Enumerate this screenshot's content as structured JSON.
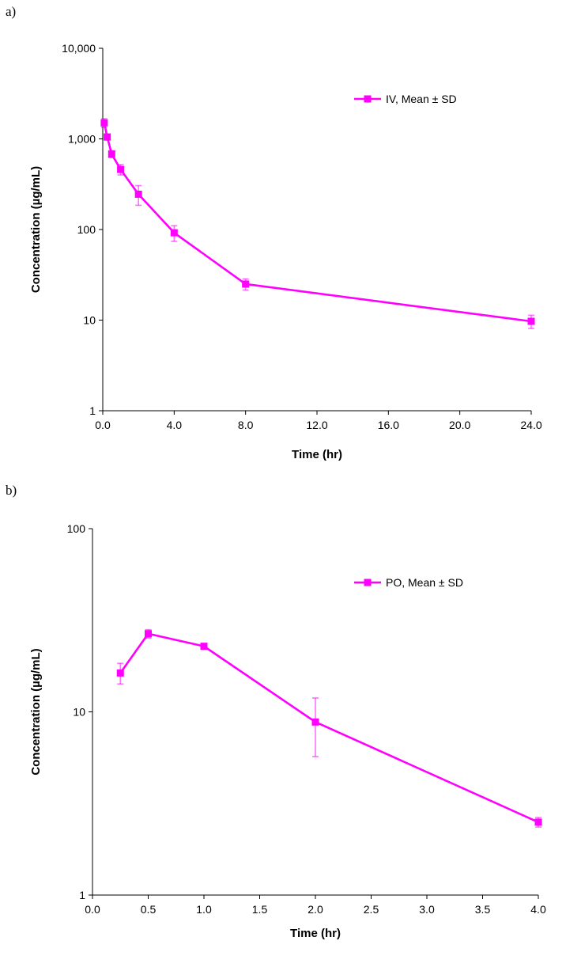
{
  "chart_data": [
    {
      "panel_label": "a)",
      "type": "line",
      "yscale": "log",
      "xlabel": "Time (hr)",
      "ylabel": "Concentration (µg/mL)",
      "xlim": [
        0,
        24
      ],
      "ylim": [
        1,
        10000
      ],
      "x_ticks": [
        0,
        4,
        8,
        12,
        16,
        20,
        24
      ],
      "x_tick_labels": [
        "0.0",
        "4.0",
        "8.0",
        "12.0",
        "16.0",
        "20.0",
        "24.0"
      ],
      "y_ticks": [
        1,
        10,
        100,
        1000,
        10000
      ],
      "y_tick_labels": [
        "1",
        "10",
        "100",
        "1,000",
        "10,000"
      ],
      "legend_position": "top-right",
      "series": [
        {
          "name": "IV, Mean ± SD",
          "color": "#ff00ff",
          "x": [
            0.083,
            0.25,
            0.5,
            1,
            2,
            4,
            8,
            24
          ],
          "y": [
            1500,
            1050,
            680,
            460,
            245,
            92,
            25,
            9.7
          ],
          "sd": [
            170,
            80,
            60,
            60,
            60,
            18,
            3.5,
            1.6
          ]
        }
      ]
    },
    {
      "panel_label": "b)",
      "type": "line",
      "yscale": "log",
      "xlabel": "Time (hr)",
      "ylabel": "Concentration (µg/mL)",
      "xlim": [
        0,
        4
      ],
      "ylim": [
        1,
        100
      ],
      "x_ticks": [
        0,
        0.5,
        1,
        1.5,
        2,
        2.5,
        3,
        3.5,
        4
      ],
      "x_tick_labels": [
        "0.0",
        "0.5",
        "1.0",
        "1.5",
        "2.0",
        "2.5",
        "3.0",
        "3.5",
        "4.0"
      ],
      "y_ticks": [
        1,
        10,
        100
      ],
      "y_tick_labels": [
        "1",
        "10",
        "100"
      ],
      "legend_position": "top-right",
      "series": [
        {
          "name": "PO, Mean ± SD",
          "color": "#ff00ff",
          "x": [
            0.25,
            0.5,
            1,
            2,
            4
          ],
          "y": [
            16.3,
            26.7,
            22.8,
            8.8,
            2.5
          ],
          "sd": [
            2.1,
            1.4,
            0.6,
            3.1,
            0.15
          ]
        }
      ]
    }
  ]
}
